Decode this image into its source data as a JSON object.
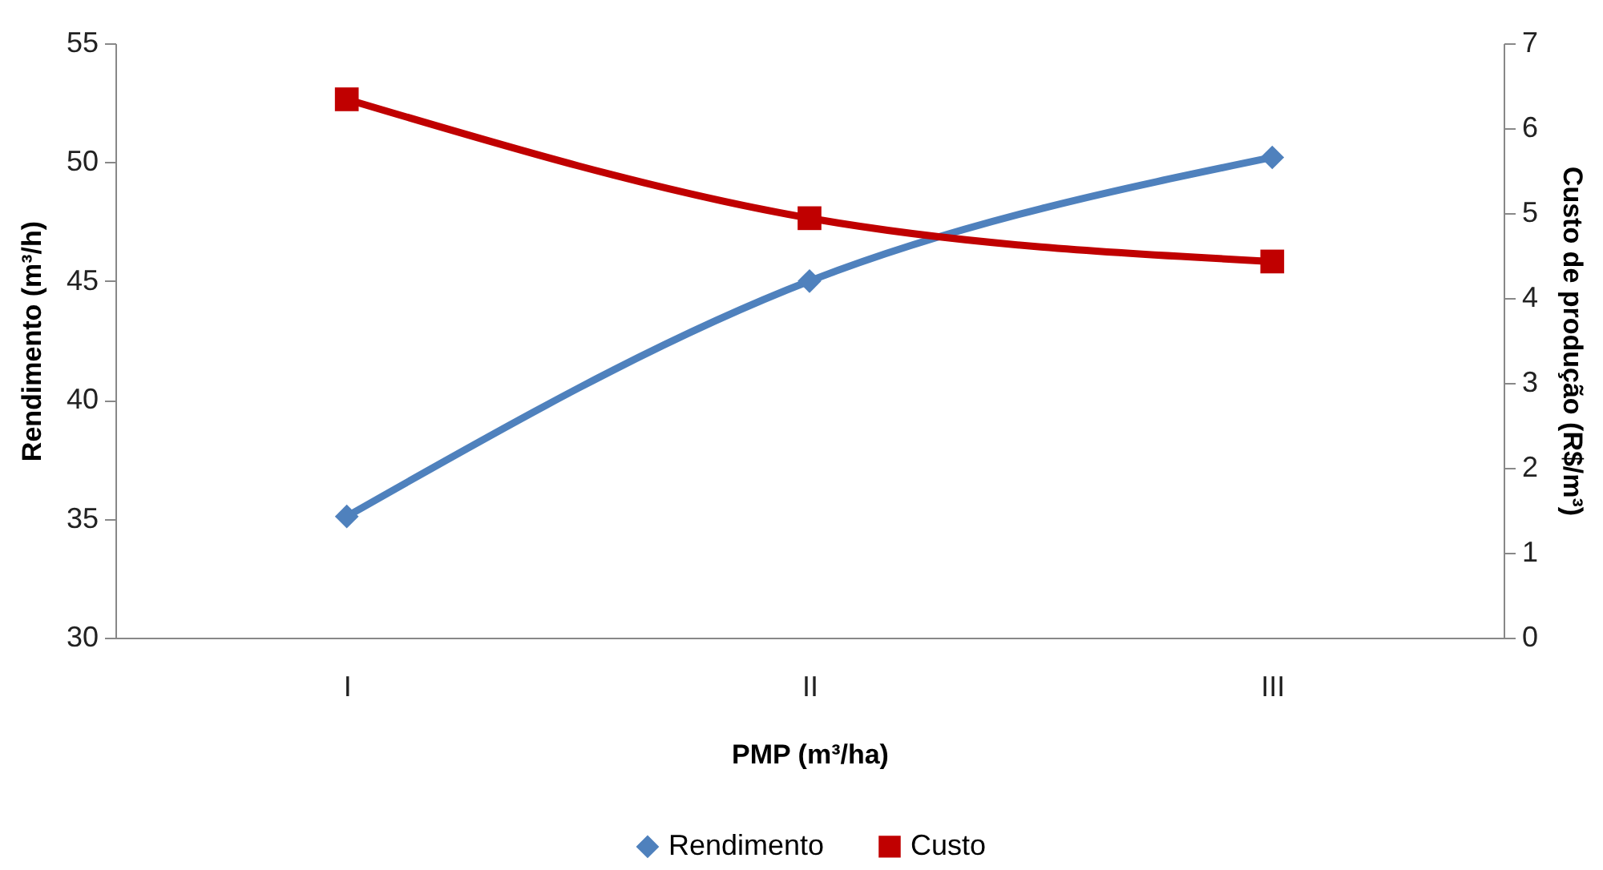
{
  "chart_data": {
    "type": "line",
    "xlabel": "PMP (m³/ha)",
    "ylabel": "Rendimento (m³/h)",
    "y2label": "Custo de produção (R$/m³)",
    "categories": [
      "I",
      "II",
      "III"
    ],
    "series": [
      {
        "name": "Rendimento",
        "color": "#4f81bd",
        "values": [
          35.1,
          45.0,
          50.2
        ],
        "marker": "diamond"
      },
      {
        "name": "Custo",
        "color": "#c00000",
        "values": [
          6.34,
          4.94,
          4.43
        ],
        "marker": "square",
        "axis": "y2"
      }
    ],
    "ylim": [
      30,
      55
    ],
    "yticks": [
      30,
      35,
      40,
      45,
      50,
      55
    ],
    "y2lim": [
      0,
      7
    ],
    "y2ticks": [
      0,
      1,
      2,
      3,
      4,
      5,
      6,
      7
    ],
    "grid": false,
    "legend": "bottom"
  }
}
